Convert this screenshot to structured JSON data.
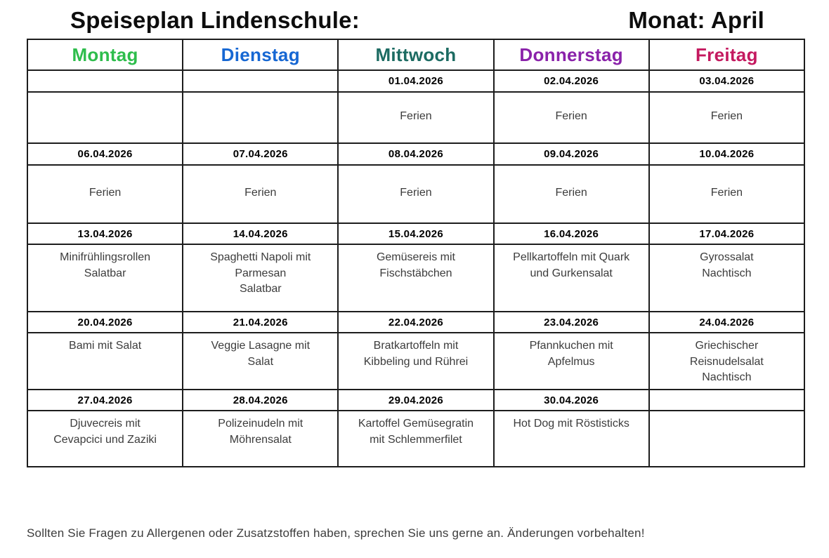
{
  "title": {
    "left": "Speiseplan Lindenschule:",
    "right": "Monat: April"
  },
  "days": [
    {
      "label": "Montag",
      "color": "#2ebd4c"
    },
    {
      "label": "Dienstag",
      "color": "#1667d3"
    },
    {
      "label": "Mittwoch",
      "color": "#1c6b62"
    },
    {
      "label": "Donnerstag",
      "color": "#8a22aa"
    },
    {
      "label": "Freitag",
      "color": "#c4195f"
    }
  ],
  "table": {
    "rows": [
      {
        "type": "date",
        "cells": [
          "",
          "",
          "01.04.2026",
          "02.04.2026",
          "03.04.2026"
        ]
      },
      {
        "type": "meal",
        "cells": [
          "",
          "",
          "Ferien",
          "Ferien",
          "Ferien"
        ]
      },
      {
        "type": "date",
        "cells": [
          "06.04.2026",
          "07.04.2026",
          "08.04.2026",
          "09.04.2026",
          "10.04.2026"
        ]
      },
      {
        "type": "meal",
        "cells": [
          "Ferien",
          "Ferien",
          "Ferien",
          "Ferien",
          "Ferien"
        ]
      },
      {
        "type": "date",
        "cells": [
          "13.04.2026",
          "14.04.2026",
          "15.04.2026",
          "16.04.2026",
          "17.04.2026"
        ]
      },
      {
        "type": "meal",
        "cells": [
          "Minifrühlingsrollen\nSalatbar",
          "Spaghetti Napoli mit\nParmesan\nSalatbar",
          "Gemüsereis mit\nFischstäbchen",
          "Pellkartoffeln mit Quark\nund Gurkensalat",
          "Gyrossalat\nNachtisch"
        ]
      },
      {
        "type": "date",
        "cells": [
          "20.04.2026",
          "21.04.2026",
          "22.04.2026",
          "23.04.2026",
          "24.04.2026"
        ]
      },
      {
        "type": "meal",
        "cells": [
          "Bami mit Salat",
          "Veggie Lasagne mit\nSalat",
          "Bratkartoffeln mit\nKibbeling und Rührei",
          "Pfannkuchen mit\nApfelmus",
          "Griechischer\nReisnudelsalat\nNachtisch"
        ]
      },
      {
        "type": "date",
        "cells": [
          "27.04.2026",
          "28.04.2026",
          "29.04.2026",
          "30.04.2026",
          ""
        ]
      },
      {
        "type": "meal",
        "cells": [
          "Djuvecreis mit\nCevapcici und Zaziki",
          "Polizeinudeln mit\nMöhrensalat",
          "Kartoffel Gemüsegratin\nmit Schlemmerfilet",
          "Hot Dog mit Röstisticks",
          ""
        ]
      }
    ]
  },
  "footer": {
    "note": "Sollten Sie Fragen zu Allergenen oder Zusatzstoffen haben, sprechen Sie uns gerne an. Änderungen vorbehalten!"
  }
}
